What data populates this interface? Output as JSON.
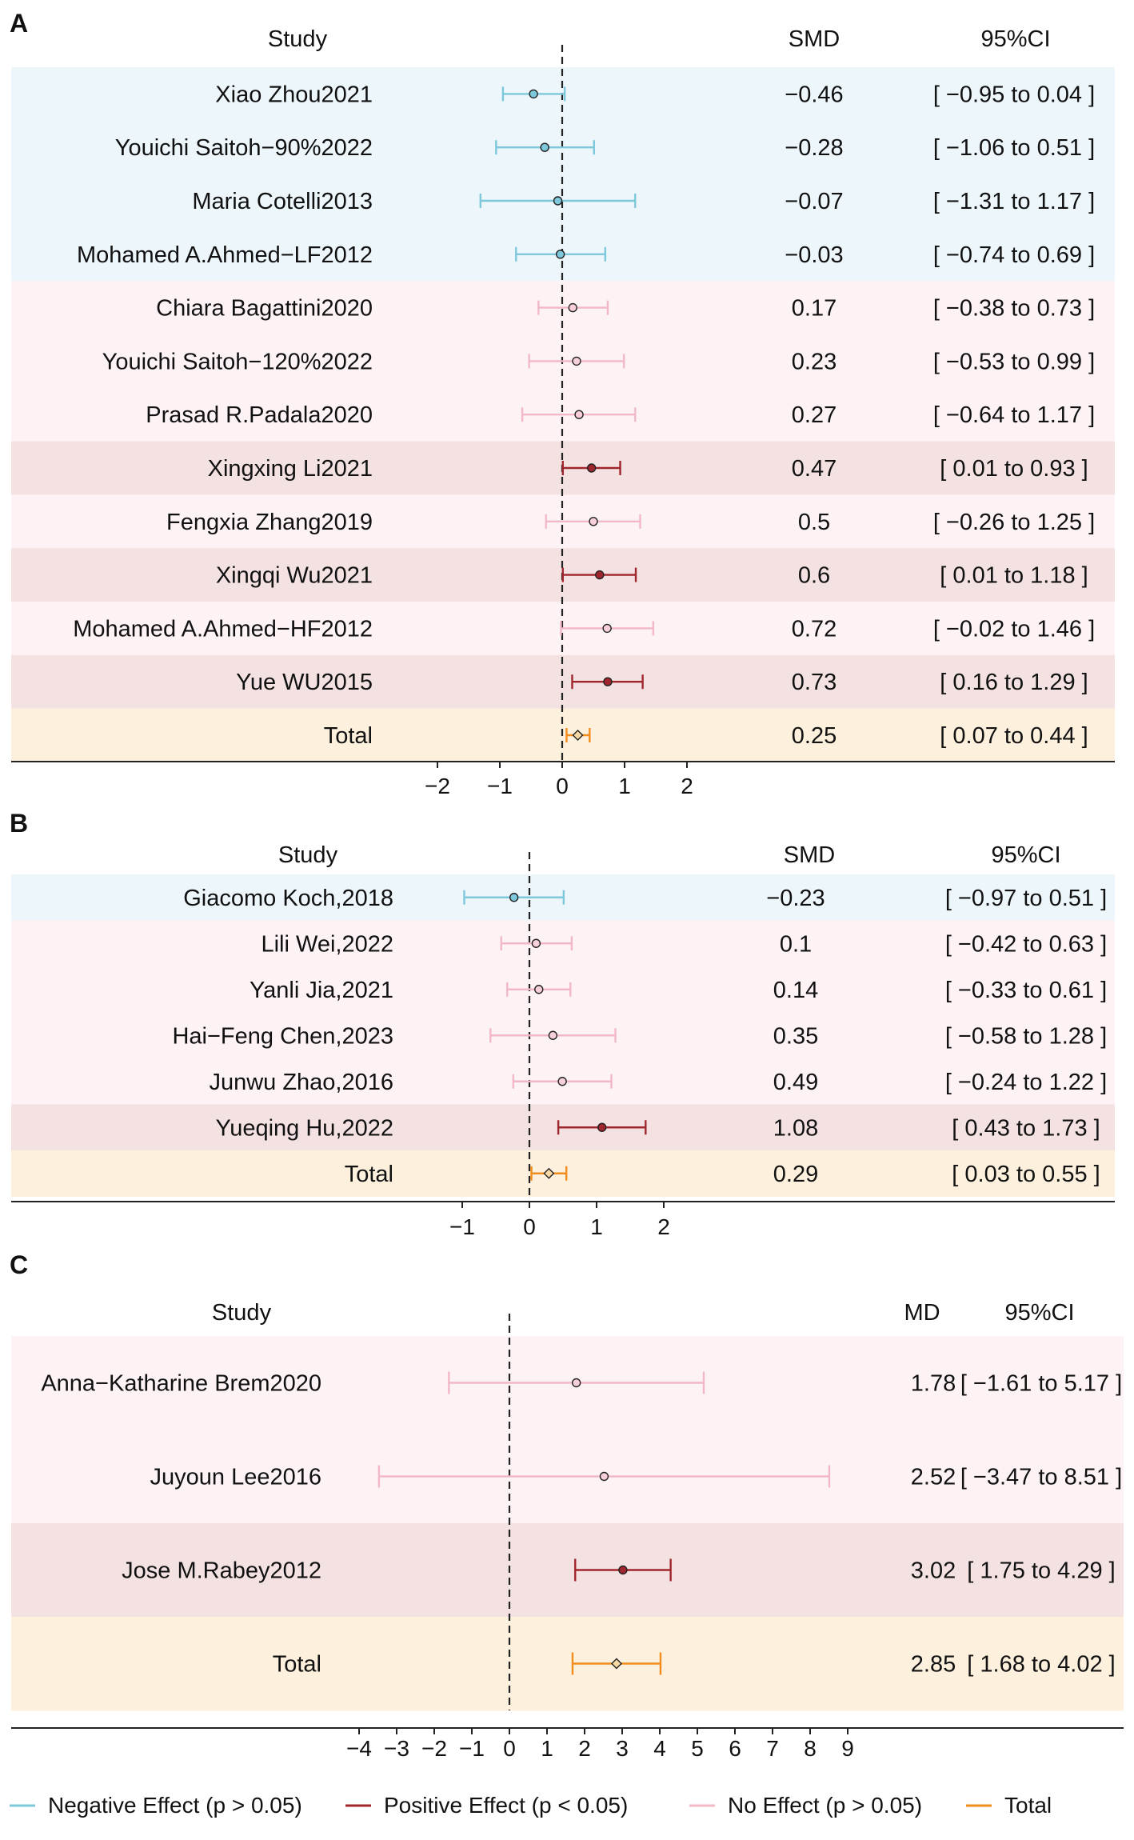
{
  "colors": {
    "negative": "#7ec8dc",
    "positive": "#a0262d",
    "none": "#f2b8c6",
    "total": "#f28c1c",
    "bg_negative": "#ecf6fb",
    "bg_positive": "#f4e2e2",
    "bg_none": "#fdf3f5",
    "bg_total": "#fdf0dd"
  },
  "headers": {
    "study": "Study",
    "smd": "SMD",
    "md": "MD",
    "ci": "95%CI"
  },
  "legend": [
    {
      "label": "Negative Effect (p > 0.05)",
      "kind": "negative"
    },
    {
      "label": "Positive Effect (p < 0.05)",
      "kind": "positive"
    },
    {
      "label": "No Effect (p > 0.05)",
      "kind": "none"
    },
    {
      "label": "Total",
      "kind": "total"
    }
  ],
  "chart_data": [
    {
      "type": "forest",
      "panel": "A",
      "measure": "SMD",
      "xticks": [
        -2,
        -1,
        0,
        1,
        2
      ],
      "rows": [
        {
          "study": "Xiao Zhou2021",
          "est": -0.46,
          "lo": -0.95,
          "hi": 0.04,
          "est_label": "−0.46",
          "ci_label": "[ −0.95 to 0.04 ]",
          "kind": "negative"
        },
        {
          "study": "Youichi Saitoh−90%2022",
          "est": -0.28,
          "lo": -1.06,
          "hi": 0.51,
          "est_label": "−0.28",
          "ci_label": "[ −1.06 to 0.51 ]",
          "kind": "negative"
        },
        {
          "study": "Maria Cotelli2013",
          "est": -0.07,
          "lo": -1.31,
          "hi": 1.17,
          "est_label": "−0.07",
          "ci_label": "[ −1.31 to 1.17 ]",
          "kind": "negative"
        },
        {
          "study": "Mohamed A.Ahmed−LF2012",
          "est": -0.03,
          "lo": -0.74,
          "hi": 0.69,
          "est_label": "−0.03",
          "ci_label": "[ −0.74 to 0.69 ]",
          "kind": "negative"
        },
        {
          "study": "Chiara Bagattini2020",
          "est": 0.17,
          "lo": -0.38,
          "hi": 0.73,
          "est_label": "0.17",
          "ci_label": "[ −0.38 to 0.73 ]",
          "kind": "none"
        },
        {
          "study": "Youichi Saitoh−120%2022",
          "est": 0.23,
          "lo": -0.53,
          "hi": 0.99,
          "est_label": "0.23",
          "ci_label": "[ −0.53 to 0.99 ]",
          "kind": "none"
        },
        {
          "study": "Prasad R.Padala2020",
          "est": 0.27,
          "lo": -0.64,
          "hi": 1.17,
          "est_label": "0.27",
          "ci_label": "[ −0.64 to 1.17 ]",
          "kind": "none"
        },
        {
          "study": "Xingxing Li2021",
          "est": 0.47,
          "lo": 0.01,
          "hi": 0.93,
          "est_label": "0.47",
          "ci_label": "[ 0.01 to 0.93 ]",
          "kind": "positive"
        },
        {
          "study": "Fengxia Zhang2019",
          "est": 0.5,
          "lo": -0.26,
          "hi": 1.25,
          "est_label": "0.5",
          "ci_label": "[ −0.26 to 1.25 ]",
          "kind": "none"
        },
        {
          "study": "Xingqi Wu2021",
          "est": 0.6,
          "lo": 0.01,
          "hi": 1.18,
          "est_label": "0.6",
          "ci_label": "[ 0.01 to 1.18 ]",
          "kind": "positive"
        },
        {
          "study": "Mohamed A.Ahmed−HF2012",
          "est": 0.72,
          "lo": -0.02,
          "hi": 1.46,
          "est_label": "0.72",
          "ci_label": "[ −0.02 to 1.46 ]",
          "kind": "none"
        },
        {
          "study": "Yue WU2015",
          "est": 0.73,
          "lo": 0.16,
          "hi": 1.29,
          "est_label": "0.73",
          "ci_label": "[ 0.16 to 1.29 ]",
          "kind": "positive"
        },
        {
          "study": "Total",
          "est": 0.25,
          "lo": 0.07,
          "hi": 0.44,
          "est_label": "0.25",
          "ci_label": "[ 0.07 to 0.44 ]",
          "kind": "total"
        }
      ]
    },
    {
      "type": "forest",
      "panel": "B",
      "measure": "SMD",
      "xticks": [
        -1,
        0,
        1,
        2
      ],
      "rows": [
        {
          "study": "Giacomo Koch,2018",
          "est": -0.23,
          "lo": -0.97,
          "hi": 0.51,
          "est_label": "−0.23",
          "ci_label": "[ −0.97 to 0.51 ]",
          "kind": "negative"
        },
        {
          "study": "Lili Wei,2022",
          "est": 0.1,
          "lo": -0.42,
          "hi": 0.63,
          "est_label": "0.1",
          "ci_label": "[ −0.42 to 0.63 ]",
          "kind": "none"
        },
        {
          "study": "Yanli Jia,2021",
          "est": 0.14,
          "lo": -0.33,
          "hi": 0.61,
          "est_label": "0.14",
          "ci_label": "[ −0.33 to 0.61 ]",
          "kind": "none"
        },
        {
          "study": "Hai−Feng Chen,2023",
          "est": 0.35,
          "lo": -0.58,
          "hi": 1.28,
          "est_label": "0.35",
          "ci_label": "[ −0.58 to 1.28 ]",
          "kind": "none"
        },
        {
          "study": "Junwu Zhao,2016",
          "est": 0.49,
          "lo": -0.24,
          "hi": 1.22,
          "est_label": "0.49",
          "ci_label": "[ −0.24 to 1.22 ]",
          "kind": "none"
        },
        {
          "study": "Yueqing Hu,2022",
          "est": 1.08,
          "lo": 0.43,
          "hi": 1.73,
          "est_label": "1.08",
          "ci_label": "[ 0.43 to 1.73 ]",
          "kind": "positive"
        },
        {
          "study": "Total",
          "est": 0.29,
          "lo": 0.03,
          "hi": 0.55,
          "est_label": "0.29",
          "ci_label": "[ 0.03 to 0.55 ]",
          "kind": "total"
        }
      ]
    },
    {
      "type": "forest",
      "panel": "C",
      "measure": "MD",
      "xticks": [
        -4,
        -3,
        -2,
        -1,
        0,
        1,
        2,
        3,
        4,
        5,
        6,
        7,
        8,
        9
      ],
      "rows": [
        {
          "study": "Anna−Katharine Brem2020",
          "est": 1.78,
          "lo": -1.61,
          "hi": 5.17,
          "est_label": "1.78",
          "ci_label": "[ −1.61 to 5.17 ]",
          "kind": "none"
        },
        {
          "study": "Juyoun Lee2016",
          "est": 2.52,
          "lo": -3.47,
          "hi": 8.51,
          "est_label": "2.52",
          "ci_label": "[ −3.47 to 8.51 ]",
          "kind": "none"
        },
        {
          "study": "Jose M.Rabey2012",
          "est": 3.02,
          "lo": 1.75,
          "hi": 4.29,
          "est_label": "3.02",
          "ci_label": "[ 1.75 to 4.29 ]",
          "kind": "positive"
        },
        {
          "study": "Total",
          "est": 2.85,
          "lo": 1.68,
          "hi": 4.02,
          "est_label": "2.85",
          "ci_label": "[ 1.68 to 4.02 ]",
          "kind": "total"
        }
      ]
    }
  ]
}
